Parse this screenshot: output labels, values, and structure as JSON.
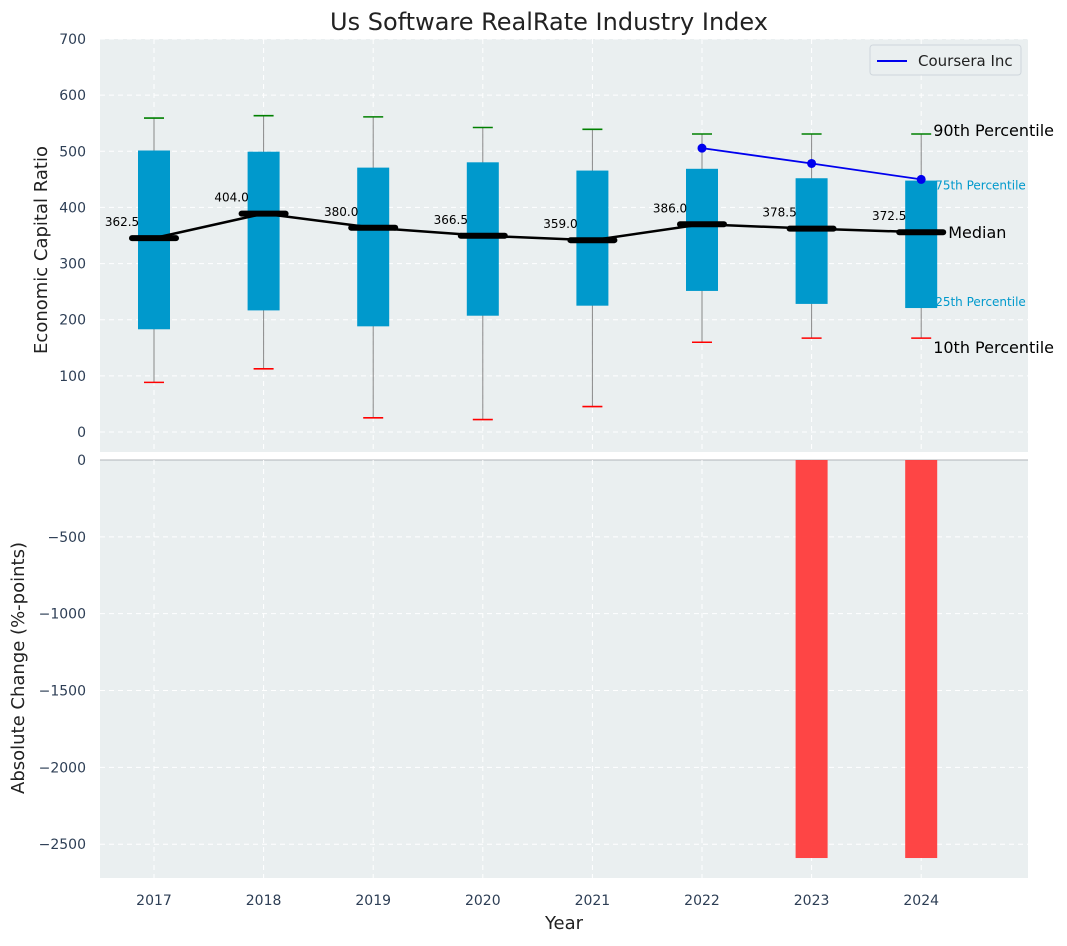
{
  "chart_data": {
    "type": "box",
    "title": "Us Software RealRate Industry Index",
    "xlabel": "Year",
    "categories": [
      "2017",
      "2018",
      "2019",
      "2020",
      "2021",
      "2022",
      "2023",
      "2024"
    ],
    "top_panel": {
      "ylabel": "Economic Capital Ratio",
      "ylim": [
        0,
        700
      ],
      "yticks": [
        "0",
        "100",
        "200",
        "300",
        "400",
        "500",
        "600",
        "700"
      ],
      "grid": true,
      "legend_position": "top-right",
      "percentiles": {
        "p10": [
          118,
          141,
          58,
          55,
          77,
          186,
          193,
          193
        ],
        "p25": [
          208,
          240,
          213,
          231,
          248,
          273,
          251,
          244
        ],
        "median": [
          362.5,
          404.0,
          380.0,
          366.5,
          359.0,
          386.0,
          378.5,
          372.5
        ],
        "p75": [
          511,
          509,
          482,
          491,
          477,
          480,
          464,
          460
        ],
        "p90": [
          566,
          570,
          568,
          550,
          547,
          539,
          539,
          539
        ]
      },
      "median_labels": [
        "362.5",
        "404.0",
        "380.0",
        "366.5",
        "359.0",
        "386.0",
        "378.5",
        "372.5"
      ],
      "company_series": {
        "name": "Coursera Inc",
        "x": [
          "2022",
          "2023",
          "2024"
        ],
        "values": [
          515,
          489,
          462
        ]
      },
      "annotations": {
        "p90": "90th Percentile",
        "p75": "75th Percentile",
        "median": "Median",
        "p25": "25th Percentile",
        "p10": "10th Percentile"
      }
    },
    "bottom_panel": {
      "ylabel": "Absolute Change (%-points)",
      "ylim": [
        -2720,
        0
      ],
      "yticks": [
        "0",
        "−500",
        "−1000",
        "−1500",
        "−2000",
        "−2500"
      ],
      "grid": true,
      "values": [
        null,
        null,
        null,
        null,
        null,
        null,
        -2590,
        -2590
      ]
    },
    "colors": {
      "box": "#0099cc",
      "median": "#000000",
      "p90_cap": "#008000",
      "p10_cap": "#ff0000",
      "company": "#0000ee",
      "change_bar": "#ff3b3b",
      "panel_bg": "#eaeff0",
      "tick_text": "#2d3e55"
    }
  }
}
